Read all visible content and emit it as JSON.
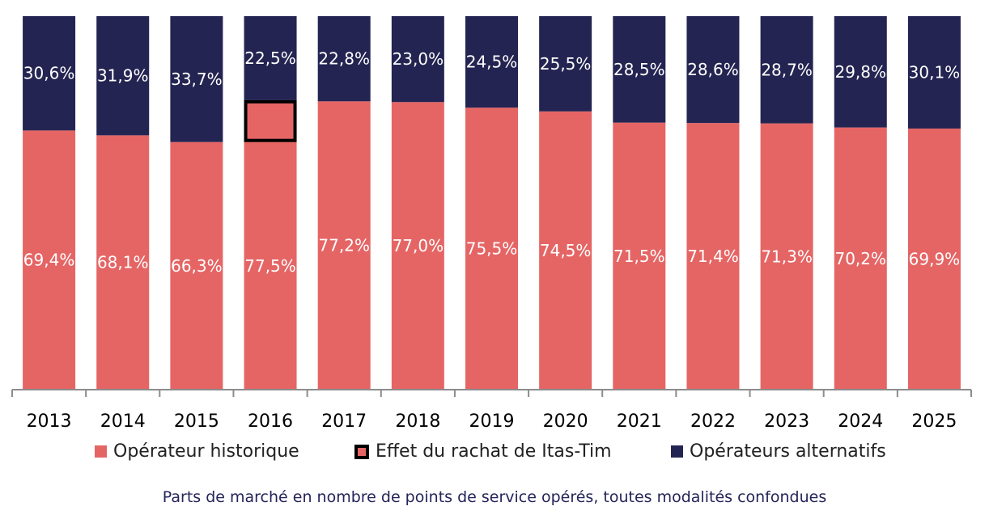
{
  "chart_data": {
    "type": "bar",
    "stacked": true,
    "categories": [
      "2013",
      "2014",
      "2015",
      "2016",
      "2017",
      "2018",
      "2019",
      "2020",
      "2021",
      "2022",
      "2023",
      "2024",
      "2025"
    ],
    "series": [
      {
        "name": "Opérateur historique",
        "color": "#e56565",
        "values": [
          69.4,
          68.1,
          66.3,
          77.5,
          77.2,
          77.0,
          75.5,
          74.5,
          71.5,
          71.4,
          71.3,
          70.2,
          69.9
        ],
        "labels": [
          "69,4%",
          "68,1%",
          "66,3%",
          "77,5%",
          "77,2%",
          "77,0%",
          "75,5%",
          "74,5%",
          "71,5%",
          "71,4%",
          "71,3%",
          "70,2%",
          "69,9%"
        ]
      },
      {
        "name": "Opérateurs alternatifs",
        "color": "#242452",
        "values": [
          30.6,
          31.9,
          33.7,
          22.5,
          22.8,
          23.0,
          24.5,
          25.5,
          28.5,
          28.6,
          28.7,
          29.8,
          30.1
        ],
        "labels": [
          "30,6%",
          "31,9%",
          "33,7%",
          "22,5%",
          "22,8%",
          "23,0%",
          "24,5%",
          "25,5%",
          "28,5%",
          "28,6%",
          "28,7%",
          "29,8%",
          "30,1%"
        ]
      }
    ],
    "highlight": {
      "name": "Effet du rachat de Itas-Tim",
      "category": "2016",
      "from": 77.5,
      "to": 66.3,
      "color": "#000000"
    },
    "ylim": [
      0,
      100
    ],
    "grid": false,
    "legend_position": "bottom"
  },
  "legend": {
    "historique": "Opérateur historique",
    "effet": "Effet du rachat de Itas-Tim",
    "alternatifs": "Opérateurs alternatifs"
  },
  "caption": "Parts de marché en nombre de points de service opérés, toutes modalités confondues"
}
